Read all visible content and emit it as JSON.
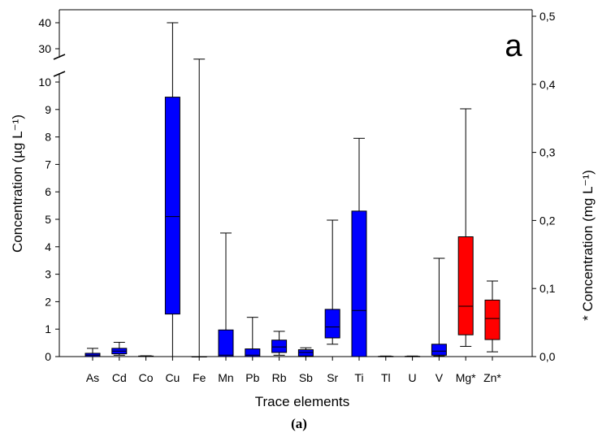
{
  "chart_data": {
    "type": "box",
    "panel_label": "a",
    "caption": "(a)",
    "xlabel": "Trace elements",
    "ylabel_left": "Concentration (µg L⁻¹)",
    "ylabel_right": "* Concentration (mg L⁻¹)",
    "y_left": {
      "lower_range": [
        0,
        10
      ],
      "lower_ticks": [
        "0",
        "1",
        "2",
        "3",
        "4",
        "5",
        "6",
        "7",
        "8",
        "9",
        "10"
      ],
      "upper_range": [
        20,
        40
      ],
      "upper_ticks": [
        "30",
        "40"
      ],
      "axis_break": true
    },
    "y_right": {
      "range": [
        0,
        0.5
      ],
      "ticks": [
        "0,0",
        "0,1",
        "0,2",
        "0,3",
        "0,4",
        "0,5"
      ]
    },
    "colors": {
      "ug_box": "#0000ff",
      "mg_box": "#ff0000",
      "outline": "#000000"
    },
    "boxes": [
      {
        "name": "As",
        "axis": "left",
        "whisker_low": 0,
        "q1": 0,
        "median": 0.05,
        "q3": 0.12,
        "whisker_high": 0.3
      },
      {
        "name": "Cd",
        "axis": "left",
        "whisker_low": 0.05,
        "q1": 0.1,
        "median": 0.2,
        "q3": 0.3,
        "whisker_high": 0.52
      },
      {
        "name": "Co",
        "axis": "left",
        "whisker_low": 0,
        "q1": 0,
        "median": 0.01,
        "q3": 0.02,
        "whisker_high": 0.03
      },
      {
        "name": "Cu",
        "axis": "left",
        "whisker_low": 0,
        "q1": 1.55,
        "median": 5.1,
        "q3": 9.45,
        "whisker_high": 40
      },
      {
        "name": "Fe",
        "axis": "left",
        "whisker_low": 0,
        "q1": 0,
        "median": 0,
        "q3": 0,
        "whisker_high": 26
      },
      {
        "name": "Mn",
        "axis": "left",
        "whisker_low": 0,
        "q1": 0,
        "median": 0.05,
        "q3": 0.97,
        "whisker_high": 4.5
      },
      {
        "name": "Pb",
        "axis": "left",
        "whisker_low": 0,
        "q1": 0,
        "median": 0.05,
        "q3": 0.28,
        "whisker_high": 1.43
      },
      {
        "name": "Rb",
        "axis": "left",
        "whisker_low": 0.05,
        "q1": 0.15,
        "median": 0.35,
        "q3": 0.6,
        "whisker_high": 0.92
      },
      {
        "name": "Sb",
        "axis": "left",
        "whisker_low": 0,
        "q1": 0.02,
        "median": 0.15,
        "q3": 0.25,
        "whisker_high": 0.32
      },
      {
        "name": "Sr",
        "axis": "left",
        "whisker_low": 0.45,
        "q1": 0.68,
        "median": 1.08,
        "q3": 1.72,
        "whisker_high": 4.97
      },
      {
        "name": "Ti",
        "axis": "left",
        "whisker_low": 0,
        "q1": 0,
        "median": 1.68,
        "q3": 5.3,
        "whisker_high": 7.95
      },
      {
        "name": "Tl",
        "axis": "left",
        "whisker_low": 0,
        "q1": 0,
        "median": 0,
        "q3": 0.01,
        "whisker_high": 0.02
      },
      {
        "name": "U",
        "axis": "left",
        "whisker_low": 0,
        "q1": 0,
        "median": 0,
        "q3": 0.01,
        "whisker_high": 0.02
      },
      {
        "name": "V",
        "axis": "left",
        "whisker_low": 0.02,
        "q1": 0.05,
        "median": 0.2,
        "q3": 0.45,
        "whisker_high": 3.58
      },
      {
        "name": "Mg*",
        "axis": "right",
        "whisker_low": 0.015,
        "q1": 0.032,
        "median": 0.074,
        "q3": 0.176,
        "whisker_high": 0.364
      },
      {
        "name": "Zn*",
        "axis": "right",
        "whisker_low": 0.007,
        "q1": 0.025,
        "median": 0.056,
        "q3": 0.083,
        "whisker_high": 0.111
      }
    ]
  }
}
